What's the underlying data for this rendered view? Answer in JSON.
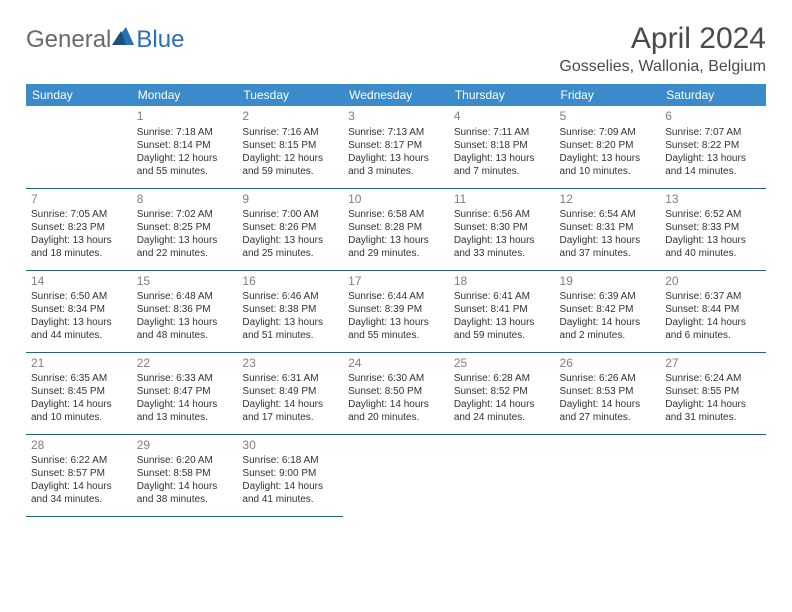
{
  "logo": {
    "general": "General",
    "blue": "Blue"
  },
  "title": "April 2024",
  "location": "Gosselies, Wallonia, Belgium",
  "colors": {
    "header_bg": "#3b8bca",
    "header_text": "#ffffff",
    "border": "#2b5d8a",
    "daynum": "#808080",
    "body_text": "#333333",
    "logo_gray": "#6a6a6a",
    "logo_blue": "#2c6fb3"
  },
  "weekdays": [
    "Sunday",
    "Monday",
    "Tuesday",
    "Wednesday",
    "Thursday",
    "Friday",
    "Saturday"
  ],
  "weeks": [
    [
      null,
      {
        "n": "1",
        "sr": "Sunrise: 7:18 AM",
        "ss": "Sunset: 8:14 PM",
        "d1": "Daylight: 12 hours",
        "d2": "and 55 minutes."
      },
      {
        "n": "2",
        "sr": "Sunrise: 7:16 AM",
        "ss": "Sunset: 8:15 PM",
        "d1": "Daylight: 12 hours",
        "d2": "and 59 minutes."
      },
      {
        "n": "3",
        "sr": "Sunrise: 7:13 AM",
        "ss": "Sunset: 8:17 PM",
        "d1": "Daylight: 13 hours",
        "d2": "and 3 minutes."
      },
      {
        "n": "4",
        "sr": "Sunrise: 7:11 AM",
        "ss": "Sunset: 8:18 PM",
        "d1": "Daylight: 13 hours",
        "d2": "and 7 minutes."
      },
      {
        "n": "5",
        "sr": "Sunrise: 7:09 AM",
        "ss": "Sunset: 8:20 PM",
        "d1": "Daylight: 13 hours",
        "d2": "and 10 minutes."
      },
      {
        "n": "6",
        "sr": "Sunrise: 7:07 AM",
        "ss": "Sunset: 8:22 PM",
        "d1": "Daylight: 13 hours",
        "d2": "and 14 minutes."
      }
    ],
    [
      {
        "n": "7",
        "sr": "Sunrise: 7:05 AM",
        "ss": "Sunset: 8:23 PM",
        "d1": "Daylight: 13 hours",
        "d2": "and 18 minutes."
      },
      {
        "n": "8",
        "sr": "Sunrise: 7:02 AM",
        "ss": "Sunset: 8:25 PM",
        "d1": "Daylight: 13 hours",
        "d2": "and 22 minutes."
      },
      {
        "n": "9",
        "sr": "Sunrise: 7:00 AM",
        "ss": "Sunset: 8:26 PM",
        "d1": "Daylight: 13 hours",
        "d2": "and 25 minutes."
      },
      {
        "n": "10",
        "sr": "Sunrise: 6:58 AM",
        "ss": "Sunset: 8:28 PM",
        "d1": "Daylight: 13 hours",
        "d2": "and 29 minutes."
      },
      {
        "n": "11",
        "sr": "Sunrise: 6:56 AM",
        "ss": "Sunset: 8:30 PM",
        "d1": "Daylight: 13 hours",
        "d2": "and 33 minutes."
      },
      {
        "n": "12",
        "sr": "Sunrise: 6:54 AM",
        "ss": "Sunset: 8:31 PM",
        "d1": "Daylight: 13 hours",
        "d2": "and 37 minutes."
      },
      {
        "n": "13",
        "sr": "Sunrise: 6:52 AM",
        "ss": "Sunset: 8:33 PM",
        "d1": "Daylight: 13 hours",
        "d2": "and 40 minutes."
      }
    ],
    [
      {
        "n": "14",
        "sr": "Sunrise: 6:50 AM",
        "ss": "Sunset: 8:34 PM",
        "d1": "Daylight: 13 hours",
        "d2": "and 44 minutes."
      },
      {
        "n": "15",
        "sr": "Sunrise: 6:48 AM",
        "ss": "Sunset: 8:36 PM",
        "d1": "Daylight: 13 hours",
        "d2": "and 48 minutes."
      },
      {
        "n": "16",
        "sr": "Sunrise: 6:46 AM",
        "ss": "Sunset: 8:38 PM",
        "d1": "Daylight: 13 hours",
        "d2": "and 51 minutes."
      },
      {
        "n": "17",
        "sr": "Sunrise: 6:44 AM",
        "ss": "Sunset: 8:39 PM",
        "d1": "Daylight: 13 hours",
        "d2": "and 55 minutes."
      },
      {
        "n": "18",
        "sr": "Sunrise: 6:41 AM",
        "ss": "Sunset: 8:41 PM",
        "d1": "Daylight: 13 hours",
        "d2": "and 59 minutes."
      },
      {
        "n": "19",
        "sr": "Sunrise: 6:39 AM",
        "ss": "Sunset: 8:42 PM",
        "d1": "Daylight: 14 hours",
        "d2": "and 2 minutes."
      },
      {
        "n": "20",
        "sr": "Sunrise: 6:37 AM",
        "ss": "Sunset: 8:44 PM",
        "d1": "Daylight: 14 hours",
        "d2": "and 6 minutes."
      }
    ],
    [
      {
        "n": "21",
        "sr": "Sunrise: 6:35 AM",
        "ss": "Sunset: 8:45 PM",
        "d1": "Daylight: 14 hours",
        "d2": "and 10 minutes."
      },
      {
        "n": "22",
        "sr": "Sunrise: 6:33 AM",
        "ss": "Sunset: 8:47 PM",
        "d1": "Daylight: 14 hours",
        "d2": "and 13 minutes."
      },
      {
        "n": "23",
        "sr": "Sunrise: 6:31 AM",
        "ss": "Sunset: 8:49 PM",
        "d1": "Daylight: 14 hours",
        "d2": "and 17 minutes."
      },
      {
        "n": "24",
        "sr": "Sunrise: 6:30 AM",
        "ss": "Sunset: 8:50 PM",
        "d1": "Daylight: 14 hours",
        "d2": "and 20 minutes."
      },
      {
        "n": "25",
        "sr": "Sunrise: 6:28 AM",
        "ss": "Sunset: 8:52 PM",
        "d1": "Daylight: 14 hours",
        "d2": "and 24 minutes."
      },
      {
        "n": "26",
        "sr": "Sunrise: 6:26 AM",
        "ss": "Sunset: 8:53 PM",
        "d1": "Daylight: 14 hours",
        "d2": "and 27 minutes."
      },
      {
        "n": "27",
        "sr": "Sunrise: 6:24 AM",
        "ss": "Sunset: 8:55 PM",
        "d1": "Daylight: 14 hours",
        "d2": "and 31 minutes."
      }
    ],
    [
      {
        "n": "28",
        "sr": "Sunrise: 6:22 AM",
        "ss": "Sunset: 8:57 PM",
        "d1": "Daylight: 14 hours",
        "d2": "and 34 minutes."
      },
      {
        "n": "29",
        "sr": "Sunrise: 6:20 AM",
        "ss": "Sunset: 8:58 PM",
        "d1": "Daylight: 14 hours",
        "d2": "and 38 minutes."
      },
      {
        "n": "30",
        "sr": "Sunrise: 6:18 AM",
        "ss": "Sunset: 9:00 PM",
        "d1": "Daylight: 14 hours",
        "d2": "and 41 minutes."
      },
      null,
      null,
      null,
      null
    ]
  ]
}
